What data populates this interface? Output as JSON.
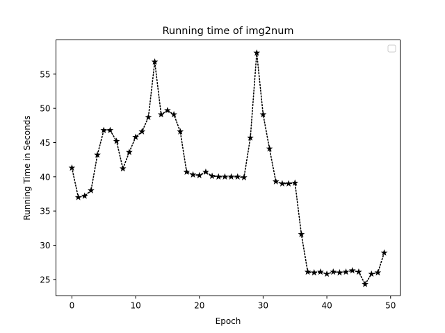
{
  "chart_data": {
    "type": "line",
    "title": "Running time of img2num",
    "xlabel": "Epoch",
    "ylabel": "Running Time in Seconds",
    "xlim": [
      -2.5,
      51.5
    ],
    "ylim": [
      22.6,
      60.0
    ],
    "xticks": [
      0,
      10,
      20,
      30,
      40,
      50
    ],
    "yticks": [
      25,
      30,
      35,
      40,
      45,
      50,
      55
    ],
    "grid": false,
    "legend": "top-right",
    "series": [
      {
        "color": "#000000",
        "line_style": "dotted",
        "marker": "star",
        "x": [
          0,
          1,
          2,
          3,
          4,
          5,
          6,
          7,
          8,
          9,
          10,
          11,
          12,
          13,
          14,
          15,
          16,
          17,
          18,
          19,
          20,
          21,
          22,
          23,
          24,
          25,
          26,
          27,
          28,
          29,
          30,
          31,
          32,
          33,
          34,
          35,
          36,
          37,
          38,
          39,
          40,
          41,
          42,
          43,
          44,
          45,
          46,
          47,
          48,
          49
        ],
        "y": [
          41.3,
          37.0,
          37.2,
          38.0,
          43.2,
          46.8,
          46.8,
          45.2,
          41.2,
          43.6,
          45.8,
          46.6,
          48.7,
          56.8,
          49.1,
          49.7,
          49.1,
          46.6,
          40.7,
          40.3,
          40.2,
          40.7,
          40.1,
          40.0,
          40.0,
          40.0,
          40.0,
          39.9,
          45.7,
          58.1,
          49.1,
          44.1,
          39.3,
          39.0,
          39.0,
          39.1,
          31.6,
          26.1,
          26.0,
          26.1,
          25.8,
          26.1,
          26.0,
          26.1,
          26.3,
          26.1,
          24.3,
          25.8,
          26.0,
          28.9
        ]
      }
    ]
  }
}
